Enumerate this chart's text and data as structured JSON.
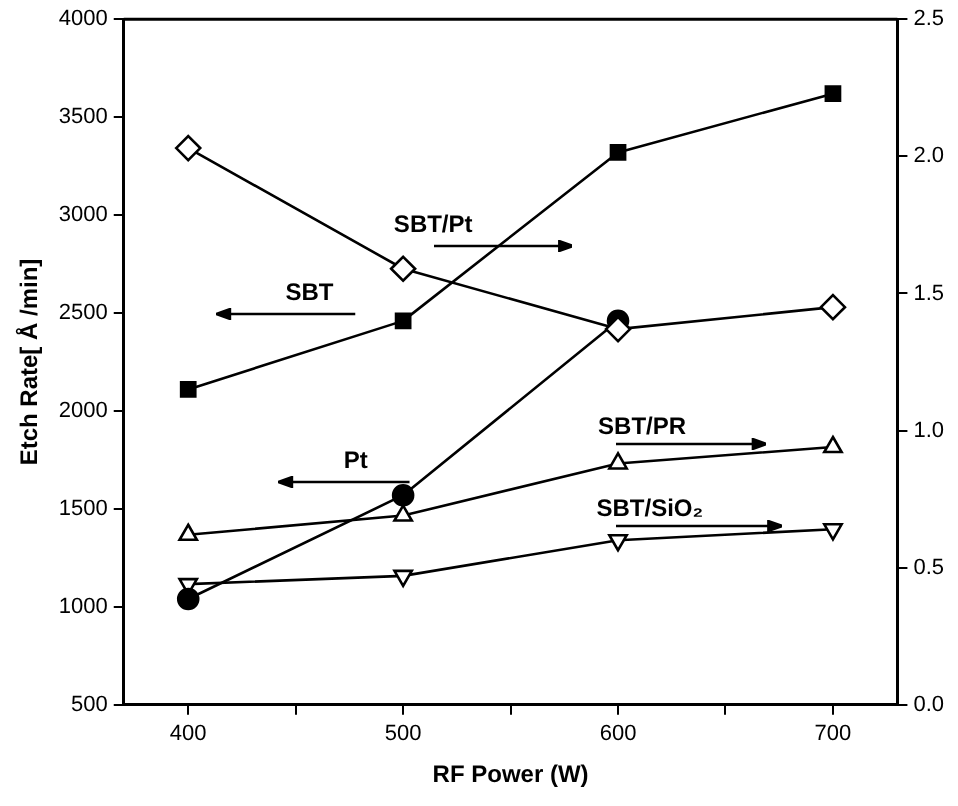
{
  "chart_data": {
    "type": "line",
    "xlabel": "RF Power (W)",
    "ylabel": "Etch Rate[ Å /min]",
    "x": [
      400,
      500,
      600,
      700
    ],
    "xlim": [
      370,
      730
    ],
    "xticks": [
      400,
      {
        "value": 450,
        "label": null
      },
      500,
      {
        "value": 550,
        "label": null
      },
      600,
      {
        "value": 650,
        "label": null
      },
      700
    ],
    "ylim": [
      500,
      4000
    ],
    "yticks": [
      500,
      1000,
      1500,
      2000,
      2500,
      3000,
      3500,
      4000
    ],
    "y2lim": [
      0,
      2.5
    ],
    "y2ticks": [
      {
        "value": 0,
        "label": "0.0"
      },
      0.5,
      {
        "value": 1,
        "label": "1.0"
      },
      1.5,
      {
        "value": 2,
        "label": "2.0"
      },
      2.5
    ],
    "grid": false,
    "legend": false,
    "line_style": "solid",
    "series": [
      {
        "name": "SBT/Pt",
        "color": "#000000",
        "marker": "diamond",
        "axis": "y2",
        "values": [
          2.03,
          1.59,
          1.37,
          1.45
        ]
      },
      {
        "name": "SBT",
        "color": "#000000",
        "marker": "square",
        "values": [
          2110,
          2460,
          3320,
          3620
        ]
      },
      {
        "name": "Pt",
        "color": "#000000",
        "marker": "circle",
        "values": [
          1040,
          1570,
          2460,
          null
        ]
      },
      {
        "name": "SBT/PR",
        "color": "#000000",
        "marker": "triangle",
        "axis": "y2",
        "values": [
          0.62,
          0.69,
          0.88,
          0.94
        ]
      },
      {
        "name": "SBT/SiO₂",
        "color": "#000000",
        "marker": "triangle-down",
        "axis": "y2",
        "values": [
          0.44,
          0.47,
          0.6,
          0.64
        ]
      }
    ]
  }
}
